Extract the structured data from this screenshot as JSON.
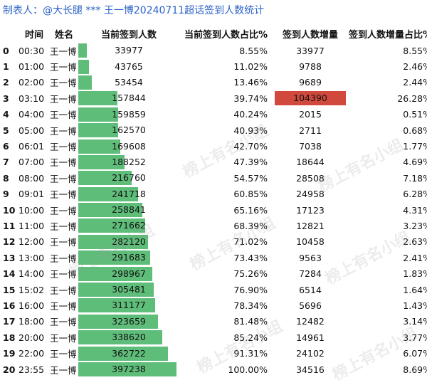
{
  "title": "制表人：@大长腿 *** 王一博20240711超话签到人数统计",
  "headers": {
    "idx": "",
    "time": "时间",
    "name": "姓名",
    "current": "当前签到人数",
    "current_pct": "当前签到人数占比%",
    "increase": "签到人数增量",
    "increase_pct": "签到人数增量占比%"
  },
  "colors": {
    "bar": "#5fbd7a",
    "highlight": "#d0493c",
    "title": "#2b63c8"
  },
  "highlight_row": 3,
  "watermark": "榜上有名小组",
  "rows": [
    {
      "idx": "0",
      "time": "00:30",
      "name": "王一博",
      "current": "33977",
      "current_value": 33977,
      "pct": "8.55%",
      "inc": "33977",
      "incpct": "8.55%"
    },
    {
      "idx": "1",
      "time": "01:00",
      "name": "王一博",
      "current": "43765",
      "current_value": 43765,
      "pct": "11.02%",
      "inc": "9788",
      "incpct": "2.46%"
    },
    {
      "idx": "2",
      "time": "02:00",
      "name": "王一博",
      "current": "53454",
      "current_value": 53454,
      "pct": "13.46%",
      "inc": "9689",
      "incpct": "2.44%"
    },
    {
      "idx": "3",
      "time": "03:10",
      "name": "王一博",
      "current": "157844",
      "current_value": 157844,
      "pct": "39.74%",
      "inc": "104390",
      "incpct": "26.28%"
    },
    {
      "idx": "4",
      "time": "04:00",
      "name": "王一博",
      "current": "159859",
      "current_value": 159859,
      "pct": "40.24%",
      "inc": "2015",
      "incpct": "0.51%"
    },
    {
      "idx": "5",
      "time": "05:00",
      "name": "王一博",
      "current": "162570",
      "current_value": 162570,
      "pct": "40.93%",
      "inc": "2711",
      "incpct": "0.68%"
    },
    {
      "idx": "6",
      "time": "06:01",
      "name": "王一博",
      "current": "169608",
      "current_value": 169608,
      "pct": "42.70%",
      "inc": "7038",
      "incpct": "1.77%"
    },
    {
      "idx": "7",
      "time": "07:00",
      "name": "王一博",
      "current": "188252",
      "current_value": 188252,
      "pct": "47.39%",
      "inc": "18644",
      "incpct": "4.69%"
    },
    {
      "idx": "8",
      "time": "08:00",
      "name": "王一博",
      "current": "216760",
      "current_value": 216760,
      "pct": "54.57%",
      "inc": "28508",
      "incpct": "7.18%"
    },
    {
      "idx": "9",
      "time": "09:01",
      "name": "王一博",
      "current": "241718",
      "current_value": 241718,
      "pct": "60.85%",
      "inc": "24958",
      "incpct": "6.28%"
    },
    {
      "idx": "10",
      "time": "10:00",
      "name": "王一博",
      "current": "258841",
      "current_value": 258841,
      "pct": "65.16%",
      "inc": "17123",
      "incpct": "4.31%"
    },
    {
      "idx": "11",
      "time": "11:00",
      "name": "王一博",
      "current": "271662",
      "current_value": 271662,
      "pct": "68.39%",
      "inc": "12821",
      "incpct": "3.23%"
    },
    {
      "idx": "12",
      "time": "12:00",
      "name": "王一博",
      "current": "282120",
      "current_value": 282120,
      "pct": "71.02%",
      "inc": "10458",
      "incpct": "2.63%"
    },
    {
      "idx": "13",
      "time": "13:00",
      "name": "王一博",
      "current": "291683",
      "current_value": 291683,
      "pct": "73.43%",
      "inc": "9563",
      "incpct": "2.41%"
    },
    {
      "idx": "14",
      "time": "14:00",
      "name": "王一博",
      "current": "298967",
      "current_value": 298967,
      "pct": "75.26%",
      "inc": "7284",
      "incpct": "1.83%"
    },
    {
      "idx": "15",
      "time": "15:02",
      "name": "王一博",
      "current": "305481",
      "current_value": 305481,
      "pct": "76.90%",
      "inc": "6514",
      "incpct": "1.64%"
    },
    {
      "idx": "16",
      "time": "16:00",
      "name": "王一博",
      "current": "311177",
      "current_value": 311177,
      "pct": "78.34%",
      "inc": "5696",
      "incpct": "1.43%"
    },
    {
      "idx": "17",
      "time": "18:00",
      "name": "王一博",
      "current": "323659",
      "current_value": 323659,
      "pct": "81.48%",
      "inc": "12482",
      "incpct": "3.14%"
    },
    {
      "idx": "18",
      "time": "20:00",
      "name": "王一博",
      "current": "338620",
      "current_value": 338620,
      "pct": "85.24%",
      "inc": "14961",
      "incpct": "3.77%"
    },
    {
      "idx": "19",
      "time": "22:00",
      "name": "王一博",
      "current": "362722",
      "current_value": 362722,
      "pct": "91.31%",
      "inc": "24102",
      "incpct": "6.07%"
    },
    {
      "idx": "20",
      "time": "23:55",
      "name": "王一博",
      "current": "397238",
      "current_value": 397238,
      "pct": "100.00%",
      "inc": "34516",
      "incpct": "8.69%"
    }
  ]
}
